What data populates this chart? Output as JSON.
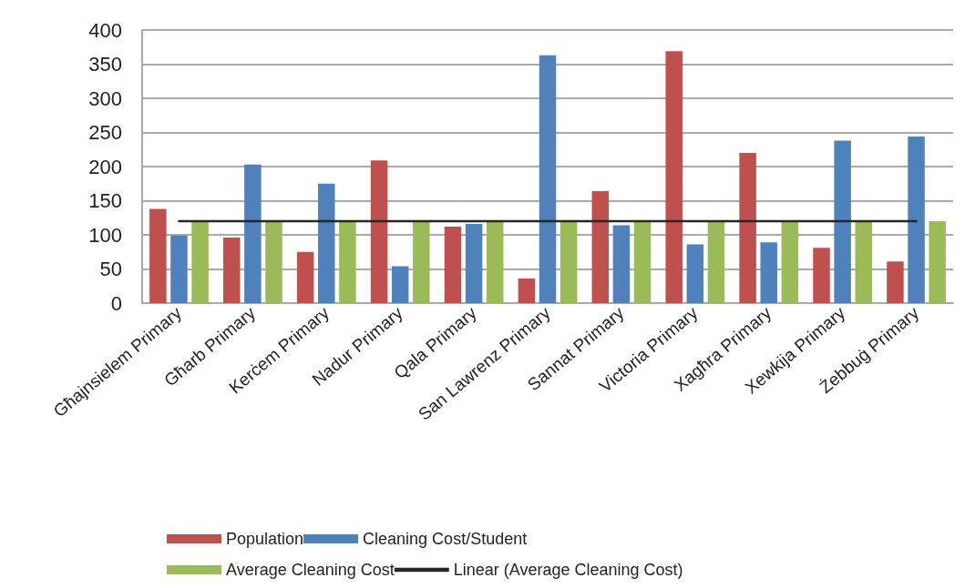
{
  "chart_data": {
    "type": "bar",
    "categories": [
      "Għajnsielem Primary",
      "Għarb Primary",
      "Kerċem Primary",
      "Nadur Primary",
      "Qala Primary",
      "San Lawrenz Primary",
      "Sannat Primary",
      "Victoria Primary",
      "Xagħra Primary",
      "Xewkija Primary",
      "Żebbuġ Primary"
    ],
    "series": [
      {
        "name": "Population",
        "color": "#c0504d",
        "values": [
          138,
          96,
          75,
          209,
          112,
          36,
          164,
          369,
          220,
          81,
          61
        ]
      },
      {
        "name": "Cleaning Cost/Student",
        "color": "#4f81bd",
        "values": [
          99,
          203,
          175,
          54,
          116,
          363,
          114,
          86,
          89,
          238,
          244
        ]
      },
      {
        "name": "Average Cleaning Cost",
        "color": "#9bbb59",
        "values": [
          120,
          120,
          120,
          120,
          120,
          120,
          120,
          120,
          120,
          120,
          120
        ]
      },
      {
        "name": "Linear (Average Cleaning Cost)",
        "type": "line",
        "color": "#262626",
        "marker": "none",
        "values": [
          120,
          120,
          120,
          120,
          120,
          120,
          120,
          120,
          120,
          120,
          120
        ]
      }
    ],
    "ylim": [
      0,
      400
    ],
    "yticks": [
      0,
      50,
      100,
      150,
      200,
      250,
      300,
      350,
      400
    ],
    "grid": "y",
    "legend": "bottom"
  }
}
